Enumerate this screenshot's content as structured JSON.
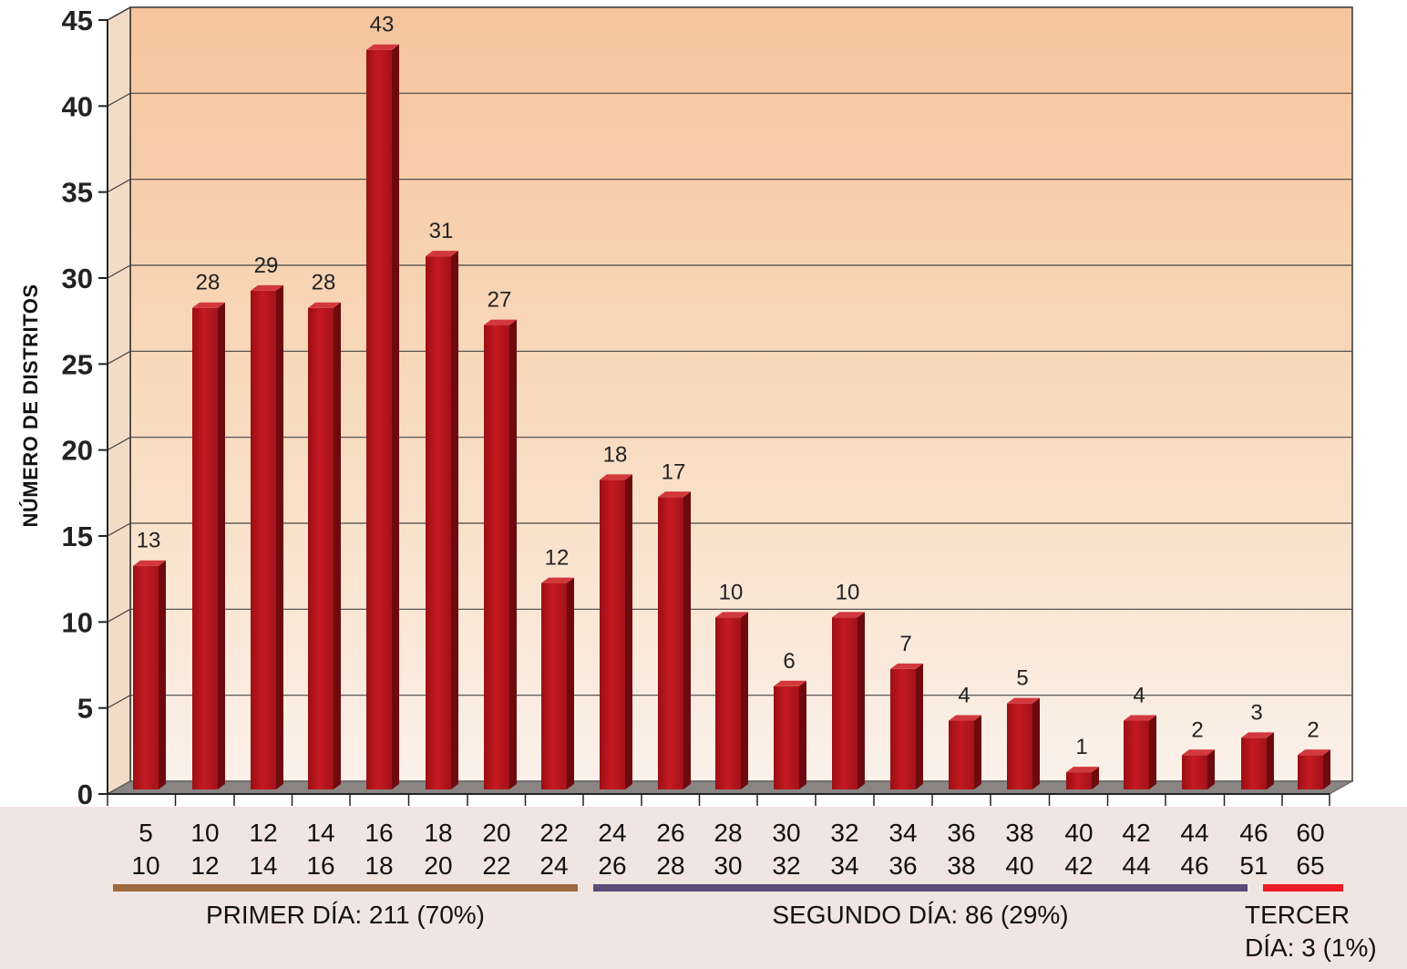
{
  "chart_data": {
    "type": "bar",
    "title": "",
    "ylabel": "NÚMERO DE DISTRITOS",
    "xlabel": "",
    "ylim": [
      0,
      45
    ],
    "yticks": [
      "0",
      "5",
      "10",
      "15",
      "20",
      "25",
      "30",
      "35",
      "40",
      "45"
    ],
    "grid": true,
    "categories": [
      [
        "5",
        "10"
      ],
      [
        "10",
        "12"
      ],
      [
        "12",
        "14"
      ],
      [
        "14",
        "16"
      ],
      [
        "16",
        "18"
      ],
      [
        "18",
        "20"
      ],
      [
        "20",
        "22"
      ],
      [
        "22",
        "24"
      ],
      [
        "24",
        "26"
      ],
      [
        "26",
        "28"
      ],
      [
        "28",
        "30"
      ],
      [
        "30",
        "32"
      ],
      [
        "32",
        "34"
      ],
      [
        "34",
        "36"
      ],
      [
        "36",
        "38"
      ],
      [
        "38",
        "40"
      ],
      [
        "40",
        "42"
      ],
      [
        "42",
        "44"
      ],
      [
        "44",
        "46"
      ],
      [
        "46",
        "51"
      ],
      [
        "60",
        "65"
      ]
    ],
    "values": [
      13,
      28,
      29,
      28,
      43,
      31,
      27,
      12,
      18,
      17,
      10,
      6,
      10,
      7,
      4,
      5,
      1,
      4,
      2,
      3,
      2
    ],
    "bar_color": "#b8141a",
    "groups": [
      {
        "label": "PRIMER DÍA: 211 (70%)",
        "color": "#9c6a3e"
      },
      {
        "label": "SEGUNDO DÍA: 86 (29%)",
        "color": "#5d4b77"
      },
      {
        "label": "TERCER DÍA: 3 (1%)",
        "color": "#ee1c24",
        "lines": [
          "TERCER",
          "DÍA: 3 (1%)"
        ]
      }
    ]
  }
}
